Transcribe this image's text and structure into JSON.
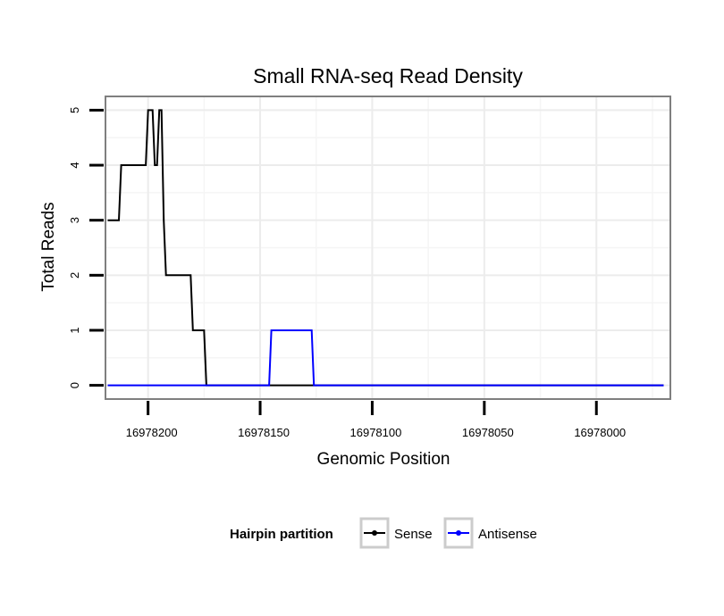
{
  "chart_data": {
    "type": "line",
    "title": "Small RNA-seq Read Density",
    "xlabel": "Genomic Position",
    "ylabel": "Total Reads",
    "xlim": [
      16978219,
      16977967
    ],
    "ylim": [
      -0.25,
      5.25
    ],
    "x_reversed": true,
    "x_ticks": [
      16978200,
      16978150,
      16978100,
      16978050,
      16978000
    ],
    "x_tick_labels": [
      "16978200",
      "16978150",
      "16978100",
      "16978050",
      "16978000"
    ],
    "y_ticks": [
      0,
      1,
      2,
      3,
      4,
      5
    ],
    "y_tick_labels": [
      "0",
      "1",
      "2",
      "3",
      "4",
      "5"
    ],
    "grid": true,
    "legend": {
      "title": "Hairpin partition",
      "placement": "bottom",
      "entries": [
        "Sense",
        "Antisense"
      ]
    },
    "series": [
      {
        "name": "Sense",
        "color": "#000000",
        "x": [
          16978218,
          16978213,
          16978212,
          16978201,
          16978200,
          16978198,
          16978197,
          16978196,
          16978195,
          16978194,
          16978193,
          16978192,
          16978191,
          16978190,
          16978189,
          16978181,
          16978180,
          16978175,
          16978174,
          16978168,
          16978167,
          16978002,
          16977970
        ],
        "y": [
          3,
          3,
          4,
          4,
          5,
          5,
          4,
          4,
          5,
          5,
          3,
          2,
          2,
          2,
          2,
          2,
          1,
          1,
          0,
          0,
          0,
          0,
          0
        ]
      },
      {
        "name": "Antisense",
        "color": "#0000ff",
        "x": [
          16978218,
          16978146,
          16978145,
          16978127,
          16978126,
          16977970
        ],
        "y": [
          0,
          0,
          1,
          1,
          0,
          0
        ]
      }
    ]
  }
}
